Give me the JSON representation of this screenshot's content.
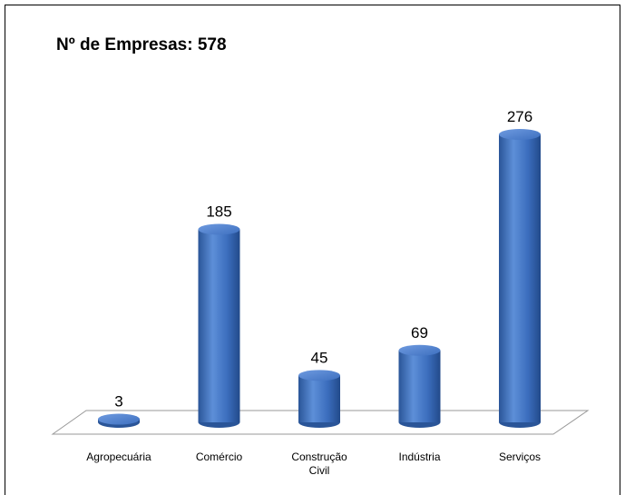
{
  "chart_data": {
    "type": "bar",
    "title": "Nº de Empresas: 578",
    "categories": [
      "Agropecuária",
      "Comércio",
      "Construção Civil",
      "Indústria",
      "Serviços"
    ],
    "values": [
      3,
      185,
      45,
      69,
      276
    ],
    "color": "#3c6fbf"
  }
}
